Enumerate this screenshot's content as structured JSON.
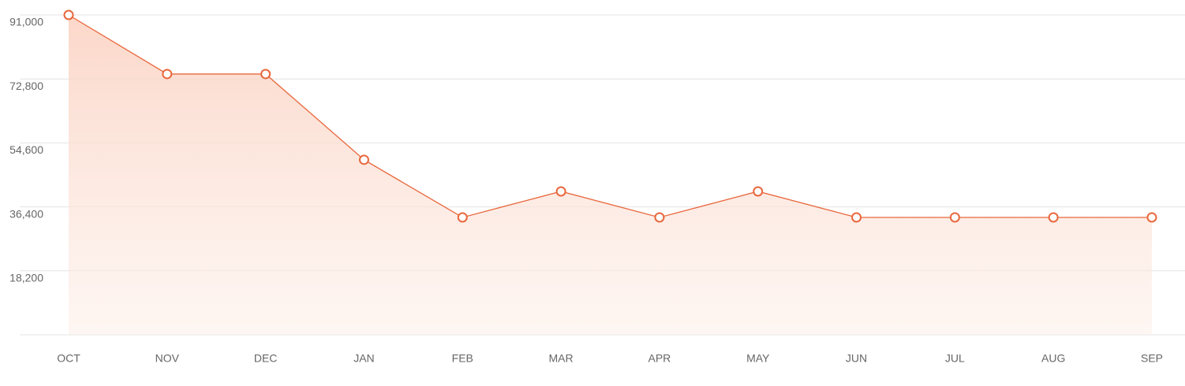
{
  "chart_data": {
    "type": "line",
    "categories": [
      "OCT",
      "NOV",
      "DEC",
      "JAN",
      "FEB",
      "MAR",
      "APR",
      "MAY",
      "JUN",
      "JUL",
      "AUG",
      "SEP"
    ],
    "values": [
      91000,
      74200,
      74200,
      49800,
      33400,
      40800,
      33400,
      40800,
      33400,
      33400,
      33400,
      33400
    ],
    "color": "#e8673c",
    "ylim": [
      0,
      91000
    ],
    "yticks": [
      {
        "value": 18200,
        "label": "18,200"
      },
      {
        "value": 36400,
        "label": "36,400"
      },
      {
        "value": 54600,
        "label": "54,600"
      },
      {
        "value": 72800,
        "label": "72,800"
      },
      {
        "value": 91000,
        "label": "91,000"
      }
    ],
    "grid": true
  }
}
